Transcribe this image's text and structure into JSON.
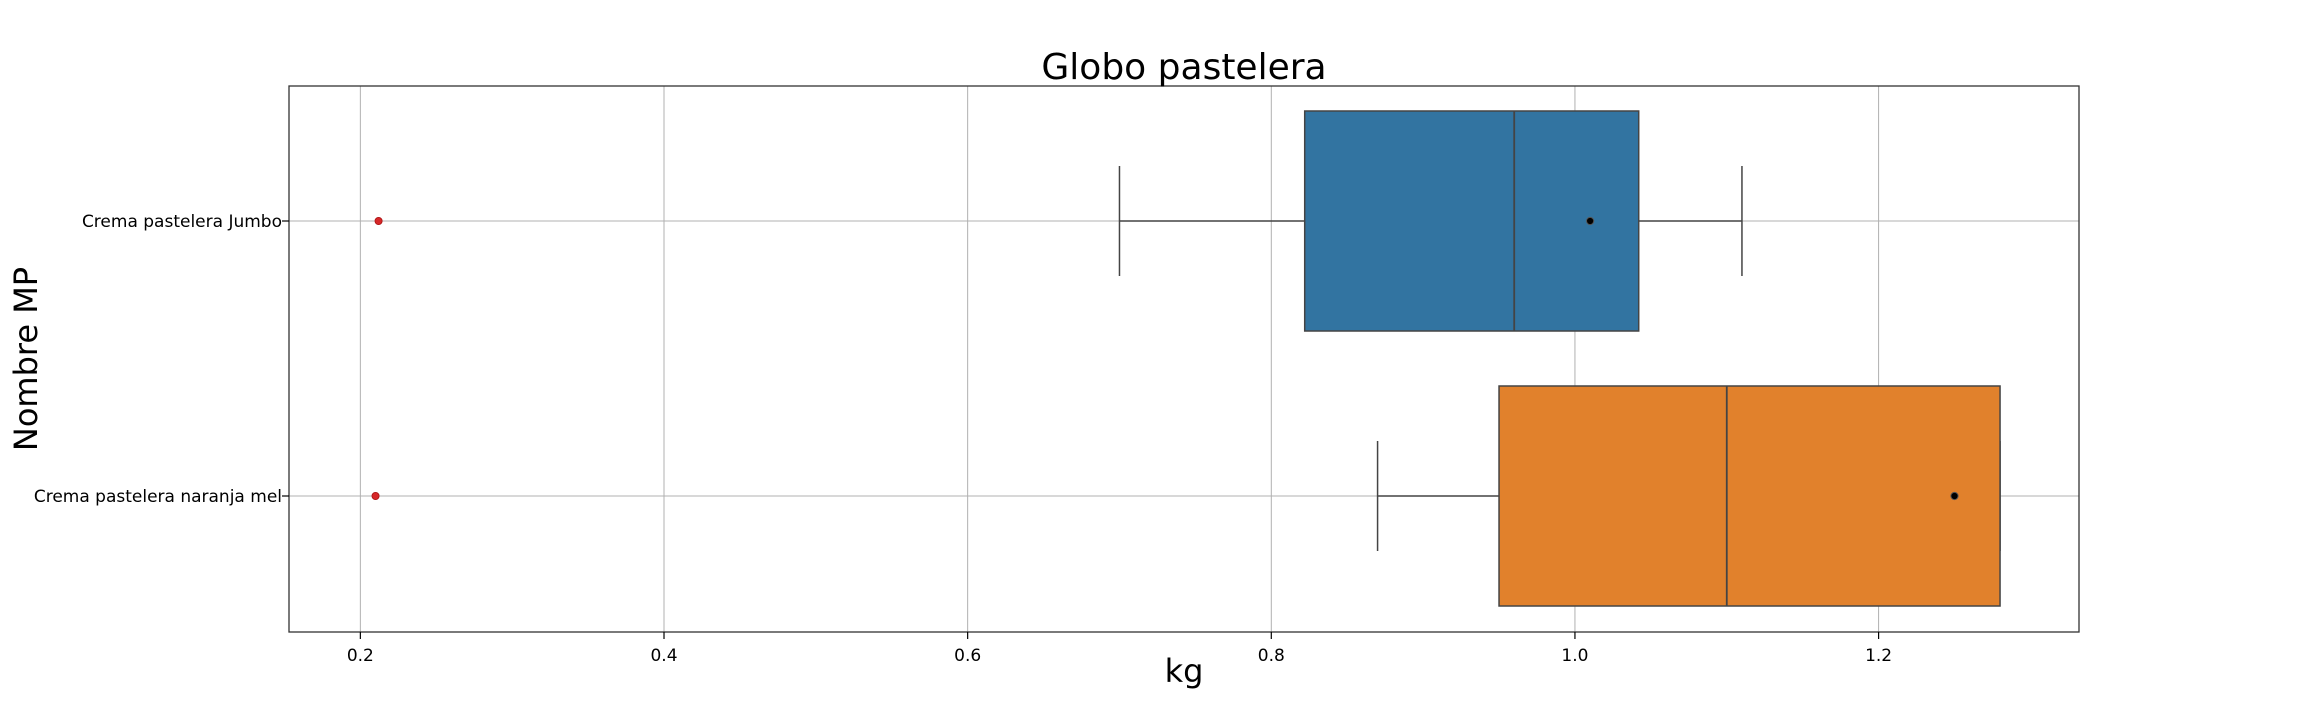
{
  "chart_data": {
    "type": "boxplot",
    "orientation": "horizontal",
    "title": "Globo pastelera",
    "xlabel": "kg",
    "ylabel": "Nombre MP",
    "xlim": [
      0.153,
      1.332
    ],
    "xticks": [
      0.2,
      0.4,
      0.6,
      0.8,
      1.0,
      1.2
    ],
    "xtick_labels": [
      "0.2",
      "0.4",
      "0.6",
      "0.8",
      "1.0",
      "1.2"
    ],
    "grid": true,
    "categories": [
      "Crema pastelera Jumbo",
      "Crema pastelera naranja mel"
    ],
    "boxes": [
      {
        "category": "Crema pastelera Jumbo",
        "color": "#3274a1",
        "whisker_low": 0.7,
        "q1": 0.822,
        "median": 0.96,
        "q3": 1.042,
        "whisker_high": 1.11,
        "mean": 1.01,
        "outliers": [
          0.212
        ]
      },
      {
        "category": "Crema pastelera naranja mel",
        "color": "#e1812c",
        "whisker_low": 0.87,
        "q1": 0.95,
        "median": 1.1,
        "q3": 1.28,
        "whisker_high": 1.28,
        "mean": 1.25,
        "outliers": [
          0.21
        ]
      }
    ],
    "outlier_color": "#d62728",
    "mean_marker_color": "#000000",
    "frame_color": "#333333"
  }
}
